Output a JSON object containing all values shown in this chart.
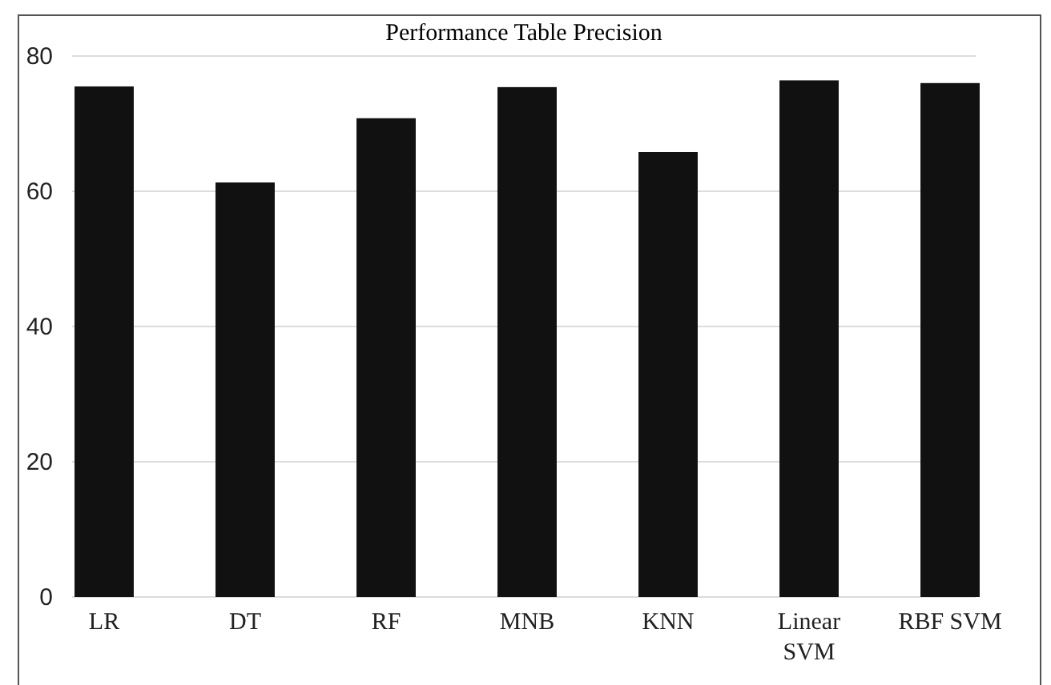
{
  "chart_data": {
    "type": "bar",
    "title": "Performance Table Precision",
    "categories": [
      "LR",
      "DT",
      "RF",
      "MNB",
      "KNN",
      "Linear SVM",
      "RBF SVM"
    ],
    "values": [
      75.5,
      61.3,
      70.8,
      75.4,
      65.8,
      76.4,
      76.0
    ],
    "color": "#111111",
    "ylim": [
      0,
      80
    ],
    "yticks": [
      0,
      20,
      40,
      60,
      80
    ],
    "grid": "y"
  }
}
